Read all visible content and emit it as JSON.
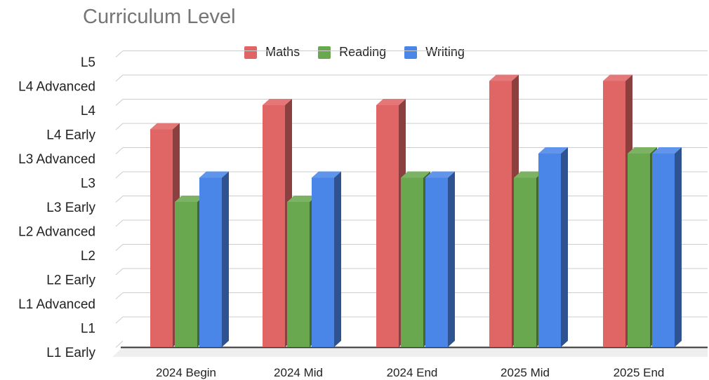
{
  "chart_data": {
    "type": "bar",
    "title": "Curriculum Level",
    "categories": [
      "2024 Begin",
      "2024 Mid",
      "2024 End",
      "2025 Mid",
      "2025 End"
    ],
    "y_tick_labels": [
      "L1 Early",
      "L1",
      "L1 Advanced",
      "L2 Early",
      "L2",
      "L2 Advanced",
      "L3 Early",
      "L3",
      "L3 Advanced",
      "L4 Early",
      "L4",
      "L4 Advanced",
      "L5"
    ],
    "ylim": [
      0,
      12
    ],
    "series": [
      {
        "name": "Maths",
        "color": "#e06666",
        "values": [
          9,
          10,
          10,
          11,
          11
        ]
      },
      {
        "name": "Reading",
        "color": "#6aa84f",
        "values": [
          6,
          6,
          7,
          7,
          8
        ]
      },
      {
        "name": "Writing",
        "color": "#4a86e8",
        "values": [
          7,
          7,
          7,
          8,
          8
        ]
      }
    ],
    "legend_position": "top",
    "grid": true,
    "style": "3d"
  }
}
